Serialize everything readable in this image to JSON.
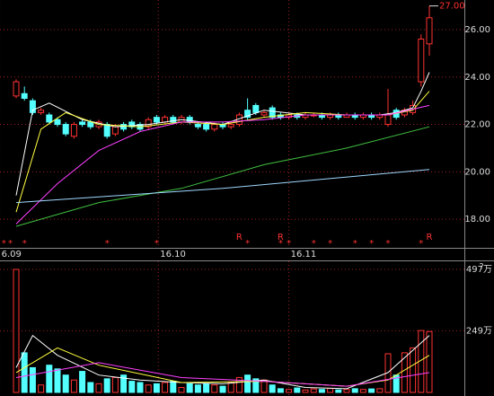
{
  "chart_data": {
    "type": "candlestick",
    "open": [
      23.2,
      23.3,
      23.0,
      22.5,
      22.4,
      22.2,
      22.0,
      21.5,
      22.1,
      22.1,
      21.9,
      22.0,
      21.6,
      22.0,
      22.1,
      22.0,
      21.9,
      22.3,
      22.1,
      22.3,
      22.1,
      22.3,
      22.0,
      22.0,
      21.8,
      22.0,
      21.9,
      22.0,
      22.6,
      22.8,
      22.4,
      22.7,
      22.4,
      22.3,
      22.4,
      22.3,
      22.4,
      22.4,
      22.3,
      22.4,
      22.3,
      22.4,
      22.3,
      22.4,
      22.3,
      22.0,
      22.6,
      22.4,
      22.5,
      23.8,
      25.4
    ],
    "high": [
      23.9,
      23.6,
      23.1,
      22.7,
      22.5,
      22.3,
      22.1,
      22.1,
      22.2,
      22.2,
      22.2,
      22.1,
      22.0,
      22.1,
      22.2,
      22.1,
      22.3,
      22.4,
      22.4,
      22.4,
      22.4,
      22.4,
      22.1,
      22.1,
      22.1,
      22.1,
      22.1,
      22.5,
      23.1,
      22.9,
      22.6,
      22.8,
      22.5,
      22.5,
      22.5,
      22.5,
      22.5,
      22.5,
      22.5,
      22.5,
      22.5,
      22.5,
      22.5,
      22.5,
      22.5,
      23.5,
      22.7,
      22.7,
      23.0,
      25.8,
      27.0
    ],
    "low": [
      23.1,
      23.0,
      22.4,
      22.4,
      22.0,
      21.9,
      21.5,
      21.4,
      21.9,
      21.8,
      21.8,
      21.4,
      21.5,
      21.7,
      21.8,
      21.7,
      21.8,
      22.0,
      22.0,
      22.0,
      22.0,
      22.0,
      21.8,
      21.7,
      21.7,
      21.8,
      21.8,
      21.9,
      22.2,
      22.4,
      22.3,
      22.2,
      22.2,
      22.2,
      22.2,
      22.2,
      22.3,
      22.2,
      22.2,
      22.2,
      22.3,
      22.2,
      22.2,
      22.2,
      22.2,
      21.9,
      22.2,
      22.3,
      22.4,
      23.6,
      24.9
    ],
    "close": [
      23.8,
      23.1,
      22.5,
      22.6,
      22.1,
      22.0,
      21.6,
      22.0,
      22.0,
      21.9,
      22.1,
      21.5,
      21.9,
      21.8,
      21.9,
      21.8,
      22.2,
      22.1,
      22.3,
      22.1,
      22.3,
      22.1,
      21.9,
      21.8,
      22.0,
      21.9,
      22.0,
      22.4,
      22.3,
      22.5,
      22.5,
      22.3,
      22.3,
      22.4,
      22.3,
      22.4,
      22.4,
      22.3,
      22.4,
      22.3,
      22.4,
      22.3,
      22.4,
      22.3,
      22.4,
      22.4,
      22.3,
      22.6,
      22.8,
      25.6,
      26.5
    ],
    "volume": [
      497,
      160,
      100,
      30,
      110,
      95,
      70,
      50,
      85,
      40,
      35,
      55,
      60,
      70,
      45,
      40,
      30,
      35,
      40,
      45,
      20,
      35,
      30,
      35,
      30,
      25,
      40,
      60,
      70,
      55,
      50,
      30,
      15,
      12,
      18,
      10,
      14,
      12,
      16,
      10,
      12,
      15,
      12,
      14,
      15,
      156,
      70,
      160,
      180,
      250,
      246
    ],
    "up_color": "#ff3232",
    "down_color": "#54ffff",
    "ylim": [
      16.83,
      27.25
    ],
    "yticks": [
      {
        "value": 18,
        "label": "18.00"
      },
      {
        "value": 20,
        "label": "20.00"
      },
      {
        "value": 22,
        "label": "22.00"
      },
      {
        "value": 24,
        "label": "24.00"
      },
      {
        "value": 26,
        "label": "26.00"
      }
    ],
    "volume_lim": [
      0,
      526
    ],
    "volume_ticks": [
      {
        "value": 249,
        "label": "249万"
      },
      {
        "value": 497,
        "label": "497万"
      }
    ],
    "volume_corner_text": "?",
    "xticks": [
      {
        "value": -2,
        "label": "6.09"
      },
      {
        "value": 17.2,
        "label": "16.10"
      },
      {
        "value": 33,
        "label": "16.11"
      }
    ],
    "price_lines": [
      {
        "color": "#ffffff",
        "x": [
          0,
          2,
          4,
          8,
          12,
          16,
          20,
          25,
          30,
          35,
          40,
          44,
          46,
          48,
          49,
          50
        ],
        "values": [
          19.0,
          22.6,
          22.9,
          22.2,
          21.9,
          22.0,
          22.2,
          22.0,
          22.6,
          22.4,
          22.4,
          22.4,
          22.5,
          22.7,
          23.4,
          24.2
        ]
      },
      {
        "color": "#ffff40",
        "x": [
          0,
          3,
          6,
          10,
          15,
          20,
          25,
          30,
          35,
          40,
          45,
          48,
          50
        ],
        "values": [
          18.3,
          21.8,
          22.5,
          22.0,
          21.9,
          22.1,
          22.0,
          22.3,
          22.5,
          22.4,
          22.4,
          22.6,
          23.4
        ]
      },
      {
        "color": "#ff40ff",
        "x": [
          0,
          5,
          10,
          15,
          20,
          25,
          30,
          35,
          40,
          45,
          50
        ],
        "values": [
          17.8,
          19.5,
          20.9,
          21.7,
          22.1,
          22.1,
          22.2,
          22.4,
          22.4,
          22.4,
          22.8
        ]
      },
      {
        "color": "#40c040",
        "x": [
          0,
          10,
          20,
          30,
          40,
          50
        ],
        "values": [
          17.7,
          18.7,
          19.3,
          20.3,
          21.0,
          21.9
        ]
      },
      {
        "color": "#a0d8ff",
        "x": [
          0,
          25,
          50
        ],
        "values": [
          18.7,
          19.3,
          20.1
        ]
      }
    ],
    "volume_lines": [
      {
        "color": "#ffffff",
        "x": [
          0,
          2,
          5,
          10,
          15,
          20,
          25,
          30,
          35,
          40,
          45,
          48,
          50
        ],
        "values": [
          100,
          230,
          150,
          70,
          50,
          40,
          35,
          50,
          20,
          15,
          80,
          170,
          230
        ]
      },
      {
        "color": "#ffff40",
        "x": [
          0,
          5,
          10,
          20,
          30,
          40,
          45,
          50
        ],
        "values": [
          80,
          180,
          110,
          40,
          45,
          25,
          50,
          150
        ]
      },
      {
        "color": "#ff40ff",
        "x": [
          0,
          10,
          20,
          30,
          40,
          50
        ],
        "values": [
          60,
          120,
          60,
          45,
          25,
          80
        ]
      }
    ],
    "high_annotation": {
      "value": 27.0,
      "label": "27.00",
      "index": 50
    },
    "markers": [
      {
        "index": -1.5,
        "text": "*"
      },
      {
        "index": -0.7,
        "text": "*"
      },
      {
        "index": 1,
        "text": "*"
      },
      {
        "index": 11,
        "text": "*"
      },
      {
        "index": 17,
        "text": "*"
      },
      {
        "index": 28,
        "text": "*"
      },
      {
        "index": 32,
        "text": "*"
      },
      {
        "index": 33,
        "text": "*"
      },
      {
        "index": 36,
        "text": "*"
      },
      {
        "index": 38,
        "text": "*"
      },
      {
        "index": 41,
        "text": "*"
      },
      {
        "index": 43,
        "text": "*"
      },
      {
        "index": 45,
        "text": "*"
      },
      {
        "index": 49,
        "text": "*"
      },
      {
        "index": 27,
        "text": "R",
        "row": 1
      },
      {
        "index": 32,
        "text": "R",
        "row": 1
      },
      {
        "index": 50,
        "text": "R",
        "row": 1
      }
    ]
  }
}
